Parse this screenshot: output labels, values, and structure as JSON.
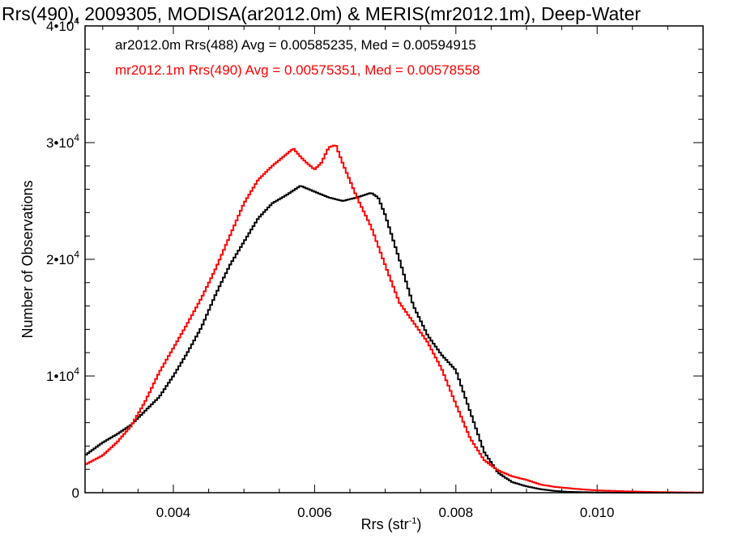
{
  "chart_data": {
    "type": "line",
    "title": "Rrs(490), 2009305, MODISA(ar2012.0m) & MERIS(mr2012.1m), Deep-Water",
    "xlabel": "Rrs (str",
    "xlabel_sup": "-1",
    "xlabel_close": ")",
    "ylabel": "Number of Observations",
    "xlim": [
      0.00275,
      0.0115
    ],
    "ylim": [
      0,
      40000
    ],
    "x_ticks": [
      {
        "value": 0.004,
        "label": "0.004"
      },
      {
        "value": 0.006,
        "label": "0.006"
      },
      {
        "value": 0.008,
        "label": "0.008"
      },
      {
        "value": 0.01,
        "label": "0.010"
      }
    ],
    "y_ticks": [
      {
        "value": 0,
        "base": "0",
        "exp": ""
      },
      {
        "value": 10000,
        "base": "1•10",
        "exp": "4"
      },
      {
        "value": 20000,
        "base": "2•10",
        "exp": "4"
      },
      {
        "value": 30000,
        "base": "3•10",
        "exp": "4"
      },
      {
        "value": 40000,
        "base": "4•10",
        "exp": "4"
      }
    ],
    "grid": false,
    "series": [
      {
        "name": "ar2012.0m Rrs(488)",
        "stats_text": "ar2012.0m Rrs(488) Avg = 0.00585235, Med = 0.00594915",
        "color": "#000000",
        "points": [
          [
            0.00275,
            3200
          ],
          [
            0.003,
            4300
          ],
          [
            0.0032,
            5000
          ],
          [
            0.0034,
            5800
          ],
          [
            0.0036,
            7000
          ],
          [
            0.0038,
            8200
          ],
          [
            0.004,
            10000
          ],
          [
            0.0042,
            12000
          ],
          [
            0.0044,
            14200
          ],
          [
            0.0046,
            17000
          ],
          [
            0.0048,
            19500
          ],
          [
            0.005,
            21500
          ],
          [
            0.0052,
            23500
          ],
          [
            0.0054,
            24800
          ],
          [
            0.0056,
            25500
          ],
          [
            0.0058,
            26300
          ],
          [
            0.006,
            25800
          ],
          [
            0.0062,
            25300
          ],
          [
            0.0064,
            25000
          ],
          [
            0.0066,
            25300
          ],
          [
            0.0068,
            25700
          ],
          [
            0.0069,
            25300
          ],
          [
            0.007,
            23800
          ],
          [
            0.0072,
            20000
          ],
          [
            0.0074,
            16000
          ],
          [
            0.0076,
            13500
          ],
          [
            0.0078,
            11800
          ],
          [
            0.008,
            10500
          ],
          [
            0.0082,
            7000
          ],
          [
            0.0084,
            3500
          ],
          [
            0.0086,
            1700
          ],
          [
            0.0088,
            900
          ],
          [
            0.009,
            550
          ],
          [
            0.0092,
            300
          ],
          [
            0.0094,
            150
          ],
          [
            0.0096,
            70
          ],
          [
            0.01,
            20
          ],
          [
            0.0105,
            0
          ],
          [
            0.0115,
            0
          ]
        ]
      },
      {
        "name": "mr2012.1m Rrs(490)",
        "stats_text": "mr2012.1m Rrs(490) Avg = 0.00575351, Med = 0.00578558",
        "color": "#ff0000",
        "points": [
          [
            0.00275,
            2400
          ],
          [
            0.003,
            3200
          ],
          [
            0.0032,
            4300
          ],
          [
            0.0034,
            5700
          ],
          [
            0.0036,
            7800
          ],
          [
            0.0038,
            10300
          ],
          [
            0.004,
            12400
          ],
          [
            0.0042,
            14500
          ],
          [
            0.0044,
            16700
          ],
          [
            0.0046,
            19200
          ],
          [
            0.0048,
            22000
          ],
          [
            0.005,
            24800
          ],
          [
            0.0052,
            26800
          ],
          [
            0.0054,
            28000
          ],
          [
            0.0056,
            29000
          ],
          [
            0.0057,
            29500
          ],
          [
            0.0058,
            28800
          ],
          [
            0.0059,
            28200
          ],
          [
            0.006,
            27700
          ],
          [
            0.0061,
            28300
          ],
          [
            0.0062,
            29600
          ],
          [
            0.0063,
            29800
          ],
          [
            0.0064,
            28200
          ],
          [
            0.0066,
            25300
          ],
          [
            0.0068,
            22800
          ],
          [
            0.007,
            19500
          ],
          [
            0.0072,
            16300
          ],
          [
            0.0074,
            14600
          ],
          [
            0.0076,
            12900
          ],
          [
            0.0078,
            10600
          ],
          [
            0.008,
            7600
          ],
          [
            0.0082,
            4700
          ],
          [
            0.0084,
            2800
          ],
          [
            0.0086,
            1900
          ],
          [
            0.0088,
            1400
          ],
          [
            0.009,
            1100
          ],
          [
            0.0092,
            700
          ],
          [
            0.0094,
            500
          ],
          [
            0.0096,
            380
          ],
          [
            0.0098,
            280
          ],
          [
            0.01,
            200
          ],
          [
            0.0104,
            120
          ],
          [
            0.0108,
            60
          ],
          [
            0.0112,
            30
          ],
          [
            0.0115,
            15
          ]
        ]
      }
    ]
  }
}
